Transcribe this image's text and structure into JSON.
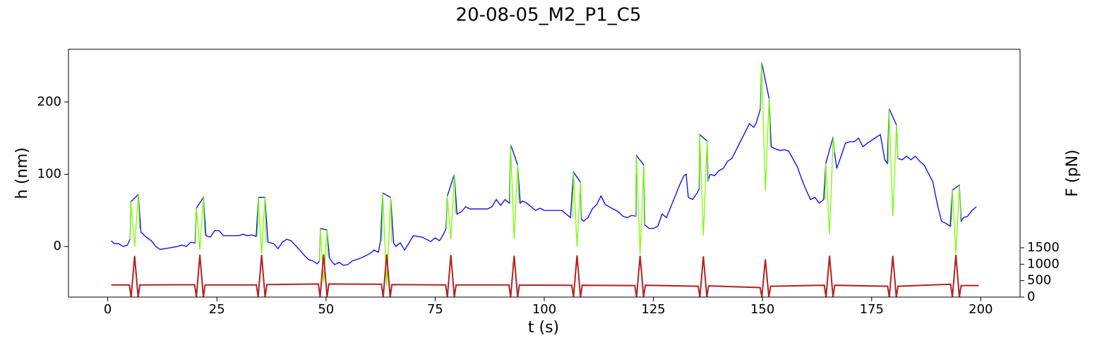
{
  "chart_data": {
    "type": "line",
    "title": "20-08-05_M2_P1_C5",
    "x_label": "t (s)",
    "y_label": "h (nm)",
    "y2_label": "F (pN)",
    "y_label_color": "#0000ff",
    "y2_label_color": "#b22222",
    "xlim": [
      -9,
      209
    ],
    "xticks": [
      0,
      25,
      50,
      75,
      100,
      125,
      150,
      175,
      200
    ],
    "ylim": [
      -70,
      273
    ],
    "yticks": [
      0,
      100,
      200
    ],
    "y2lim": [
      0,
      7540
    ],
    "y2ticks": [
      0,
      500,
      1000,
      1500
    ],
    "series": [
      {
        "color": "#0000ff",
        "axis": "y",
        "x": [
          0.8,
          1.5,
          2.5,
          3.5,
          4.5,
          5.1,
          5.3,
          7.0,
          7.6,
          9,
          10,
          11,
          12,
          14,
          16,
          17,
          18,
          19,
          20,
          20.3,
          21.9,
          22.5,
          23.5,
          24.5,
          25.5,
          26.5,
          30,
          31,
          32,
          33,
          34,
          34.5,
          36.0,
          36.7,
          38,
          39,
          40,
          41,
          42,
          44,
          45,
          46,
          47,
          48,
          48.5,
          48.7,
          50.2,
          50.8,
          51.5,
          52,
          53,
          54,
          55,
          56,
          58,
          60,
          61,
          62,
          62.5,
          63.0,
          64.8,
          65.5,
          66,
          67,
          68,
          69,
          70,
          72,
          73,
          74,
          75,
          76,
          77,
          77.5,
          77.8,
          79.4,
          80,
          81,
          82,
          83,
          87,
          88,
          89,
          90,
          91,
          92,
          92.3,
          93.9,
          94.5,
          95,
          96,
          97,
          98,
          99,
          100,
          104,
          105,
          106,
          106.7,
          108.3,
          108.5,
          109,
          110,
          111,
          112,
          113,
          114,
          117,
          118,
          119,
          120,
          121,
          121.1,
          122.8,
          123,
          124,
          125,
          126,
          127,
          128,
          131,
          132,
          132.5,
          133,
          134,
          135,
          135.5,
          135.6,
          137.3,
          137.5,
          138,
          139,
          140,
          141,
          142,
          143,
          147,
          148,
          148.5,
          149.5,
          149.8,
          151.5,
          152,
          153,
          154,
          155,
          156,
          158,
          159,
          160,
          161,
          162,
          163,
          164,
          164.5,
          166.2,
          166.5,
          167,
          168,
          169,
          170,
          171,
          172,
          173,
          174,
          175,
          177,
          178,
          178.6,
          179.0,
          180.7,
          181,
          182,
          183,
          184,
          185,
          186,
          187,
          189,
          190,
          191,
          192,
          193,
          193.5,
          195.1,
          195.5,
          196,
          197,
          198,
          199
        ],
        "values": [
          8,
          4,
          4,
          0,
          2,
          10,
          62,
          72,
          20,
          12,
          8,
          0,
          -4,
          -2,
          0,
          2,
          0,
          6,
          5,
          53,
          68,
          15,
          13,
          22,
          22,
          15,
          15,
          17,
          15,
          16,
          14,
          68,
          68,
          6,
          4,
          -3,
          6,
          10,
          8,
          -5,
          -12,
          -18,
          -20,
          -24,
          -20,
          25,
          23,
          -16,
          -22,
          -25,
          -22,
          -26,
          -25,
          -20,
          -16,
          -10,
          -5,
          -8,
          8,
          74,
          68,
          5,
          0,
          5,
          -5,
          5,
          15,
          13,
          10,
          7,
          12,
          8,
          18,
          25,
          70,
          100,
          45,
          48,
          55,
          52,
          52,
          55,
          65,
          57,
          65,
          60,
          141,
          113,
          60,
          63,
          60,
          55,
          50,
          53,
          50,
          50,
          45,
          40,
          103,
          89,
          38,
          35,
          40,
          52,
          58,
          70,
          58,
          48,
          42,
          40,
          43,
          42,
          126,
          113,
          30,
          25,
          25,
          28,
          45,
          40,
          85,
          98,
          100,
          68,
          65,
          74,
          80,
          155,
          146,
          90,
          100,
          98,
          105,
          108,
          118,
          122,
          170,
          165,
          170,
          190,
          255,
          205,
          138,
          135,
          133,
          134,
          132,
          110,
          93,
          78,
          65,
          68,
          60,
          65,
          115,
          152,
          130,
          108,
          125,
          143,
          145,
          145,
          150,
          138,
          143,
          147,
          155,
          120,
          115,
          191,
          168,
          122,
          120,
          125,
          120,
          125,
          118,
          113,
          90,
          60,
          35,
          32,
          28,
          78,
          85,
          35,
          40,
          42,
          50,
          55
        ]
      },
      {
        "color": "#7cfc00",
        "axis": "y",
        "x": [
          5.1,
          5.3,
          6.15,
          7.0,
          7.3,
          7.4,
          20.1,
          20.3,
          21.1,
          21.9,
          22.2,
          22.3,
          34.3,
          34.5,
          35.25,
          36.0,
          36.3,
          36.4,
          48.5,
          48.7,
          49.45,
          50.2,
          50.5,
          50.6,
          62.8,
          63.0,
          63.9,
          64.8,
          65.1,
          65.2,
          77.6,
          77.8,
          78.6,
          79.4,
          79.7,
          79.8,
          92.1,
          92.3,
          93.1,
          93.9,
          94.2,
          94.3,
          106.5,
          106.7,
          107.5,
          108.3,
          108.6,
          108.7,
          120.9,
          121.1,
          121.95,
          122.8,
          123.1,
          123.2,
          135.4,
          135.6,
          136.45,
          137.3,
          137.6,
          137.7,
          149.6,
          149.8,
          150.65,
          151.5,
          151.8,
          151.9,
          164.3,
          164.5,
          165.35,
          166.2,
          166.5,
          166.6,
          178.8,
          179.0,
          179.85,
          180.7,
          181.0,
          181.1,
          193.3,
          193.5,
          194.3,
          195.1,
          195.4
        ],
        "values": [
          10,
          62,
          0,
          72,
          25,
          null,
          5,
          53,
          -5,
          68,
          15,
          null,
          14,
          68,
          -10,
          68,
          6,
          null,
          -20,
          25,
          -50,
          23,
          -16,
          null,
          8,
          74,
          -55,
          68,
          5,
          null,
          25,
          70,
          10,
          100,
          45,
          null,
          60,
          141,
          10,
          113,
          60,
          null,
          40,
          103,
          0,
          89,
          38,
          null,
          42,
          126,
          -10,
          113,
          30,
          null,
          80,
          155,
          15,
          146,
          90,
          null,
          190,
          255,
          77,
          205,
          138,
          null,
          65,
          115,
          17,
          152,
          130,
          null,
          115,
          191,
          42,
          168,
          122,
          null,
          28,
          78,
          -10,
          85,
          35
        ]
      },
      {
        "color": "#b22222",
        "axis": "y2",
        "x": [
          0.8,
          4.95,
          5.35,
          6.15,
          6.95,
          7.35,
          19.9,
          20.3,
          21.1,
          21.9,
          22.3,
          34.05,
          34.45,
          35.25,
          36.05,
          36.45,
          48.25,
          48.65,
          49.45,
          50.25,
          50.65,
          62.7,
          63.1,
          63.9,
          64.7,
          65.1,
          77.4,
          77.8,
          78.6,
          79.4,
          79.8,
          91.9,
          92.3,
          93.1,
          93.9,
          94.3,
          106.3,
          106.7,
          107.5,
          108.3,
          108.7,
          120.75,
          121.15,
          121.95,
          122.75,
          123.15,
          135.25,
          135.65,
          136.45,
          137.25,
          137.65,
          149.45,
          149.85,
          150.65,
          151.45,
          151.85,
          164.15,
          164.55,
          165.35,
          166.15,
          166.55,
          178.65,
          179.05,
          179.85,
          180.65,
          181.05,
          193.1,
          193.5,
          194.3,
          195.1,
          195.5,
          199.5
        ],
        "values": [
          370,
          370,
          0,
          1250,
          0,
          370,
          375,
          0,
          1290,
          0,
          370,
          370,
          0,
          1280,
          0,
          380,
          400,
          0,
          1300,
          0,
          400,
          390,
          0,
          1300,
          0,
          380,
          370,
          0,
          1280,
          0,
          370,
          370,
          0,
          1260,
          0,
          365,
          360,
          0,
          1270,
          0,
          360,
          350,
          0,
          1260,
          0,
          360,
          330,
          0,
          1240,
          0,
          340,
          290,
          0,
          1150,
          0,
          330,
          360,
          0,
          1260,
          0,
          360,
          330,
          0,
          1250,
          0,
          330,
          390,
          0,
          1290,
          0,
          350,
          350
        ]
      }
    ]
  }
}
